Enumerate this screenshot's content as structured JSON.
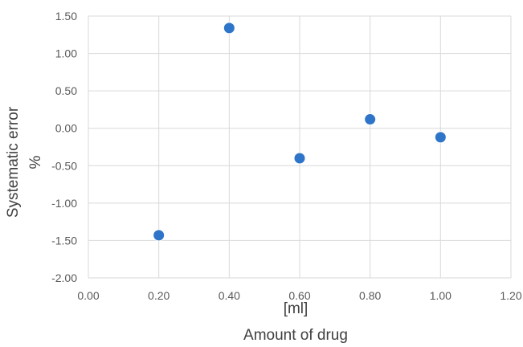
{
  "chart_data": {
    "type": "scatter",
    "title": "",
    "xlabel_lines": [
      "[ml]",
      "Amount of drug"
    ],
    "ylabel_lines": [
      "Systematic error",
      "%"
    ],
    "xlim": [
      0,
      1.2
    ],
    "ylim": [
      -2,
      1.5
    ],
    "x_ticks": [
      "0.00",
      "0.20",
      "0.40",
      "0.60",
      "0.80",
      "1.00",
      "1.20"
    ],
    "y_ticks": [
      "1.50",
      "1.00",
      "0.50",
      "0.00",
      "-0.50",
      "-1.00",
      "-1.50",
      "-2.00"
    ],
    "grid": true,
    "legend": false,
    "marker_color": "#2E75C9",
    "points": [
      {
        "x": 0.2,
        "y": -1.43
      },
      {
        "x": 0.4,
        "y": 1.34
      },
      {
        "x": 0.6,
        "y": -0.4
      },
      {
        "x": 0.8,
        "y": 0.12
      },
      {
        "x": 1.0,
        "y": -0.12
      }
    ]
  }
}
